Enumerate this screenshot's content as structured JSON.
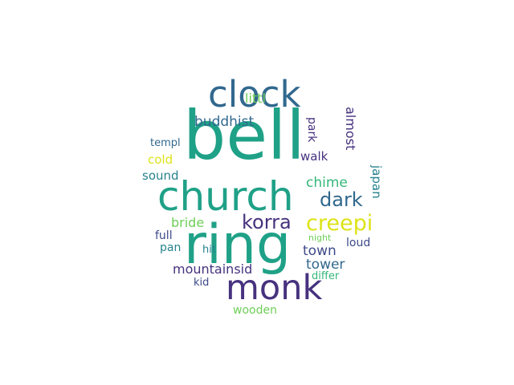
{
  "words": [
    {
      "text": "bell",
      "color": "#1fa187"
    },
    {
      "text": "church",
      "color": "#1fa187"
    },
    {
      "text": "ring",
      "color": "#1fa187"
    },
    {
      "text": "clock",
      "color": "#31688e"
    },
    {
      "text": "monk",
      "color": "#46327e"
    },
    {
      "text": "creepi",
      "color": "#dde318"
    },
    {
      "text": "korra",
      "color": "#46327e"
    },
    {
      "text": "dark",
      "color": "#31688e"
    },
    {
      "text": "chime",
      "color": "#35b779"
    },
    {
      "text": "buddhist",
      "color": "#31688e"
    },
    {
      "text": "mountainsid",
      "color": "#46327e"
    },
    {
      "text": "town",
      "color": "#3e4a89"
    },
    {
      "text": "tower",
      "color": "#31688e"
    },
    {
      "text": "littl",
      "color": "#6ece58"
    },
    {
      "text": "bride",
      "color": "#6ece58"
    },
    {
      "text": "templ",
      "color": "#31688e"
    },
    {
      "text": "cold",
      "color": "#dde318"
    },
    {
      "text": "sound",
      "color": "#26828e"
    },
    {
      "text": "walk",
      "color": "#46327e"
    },
    {
      "text": "park",
      "color": "#46327e"
    },
    {
      "text": "almost",
      "color": "#46327e"
    },
    {
      "text": "japan",
      "color": "#26828e"
    },
    {
      "text": "full",
      "color": "#3e4a89"
    },
    {
      "text": "pan",
      "color": "#26828e"
    },
    {
      "text": "hit",
      "color": "#26828e"
    },
    {
      "text": "loud",
      "color": "#3e4a89"
    },
    {
      "text": "night",
      "color": "#6ece58"
    },
    {
      "text": "differ",
      "color": "#35b779"
    },
    {
      "text": "kid",
      "color": "#3e4a89"
    },
    {
      "text": "wooden",
      "color": "#6ece58"
    }
  ]
}
